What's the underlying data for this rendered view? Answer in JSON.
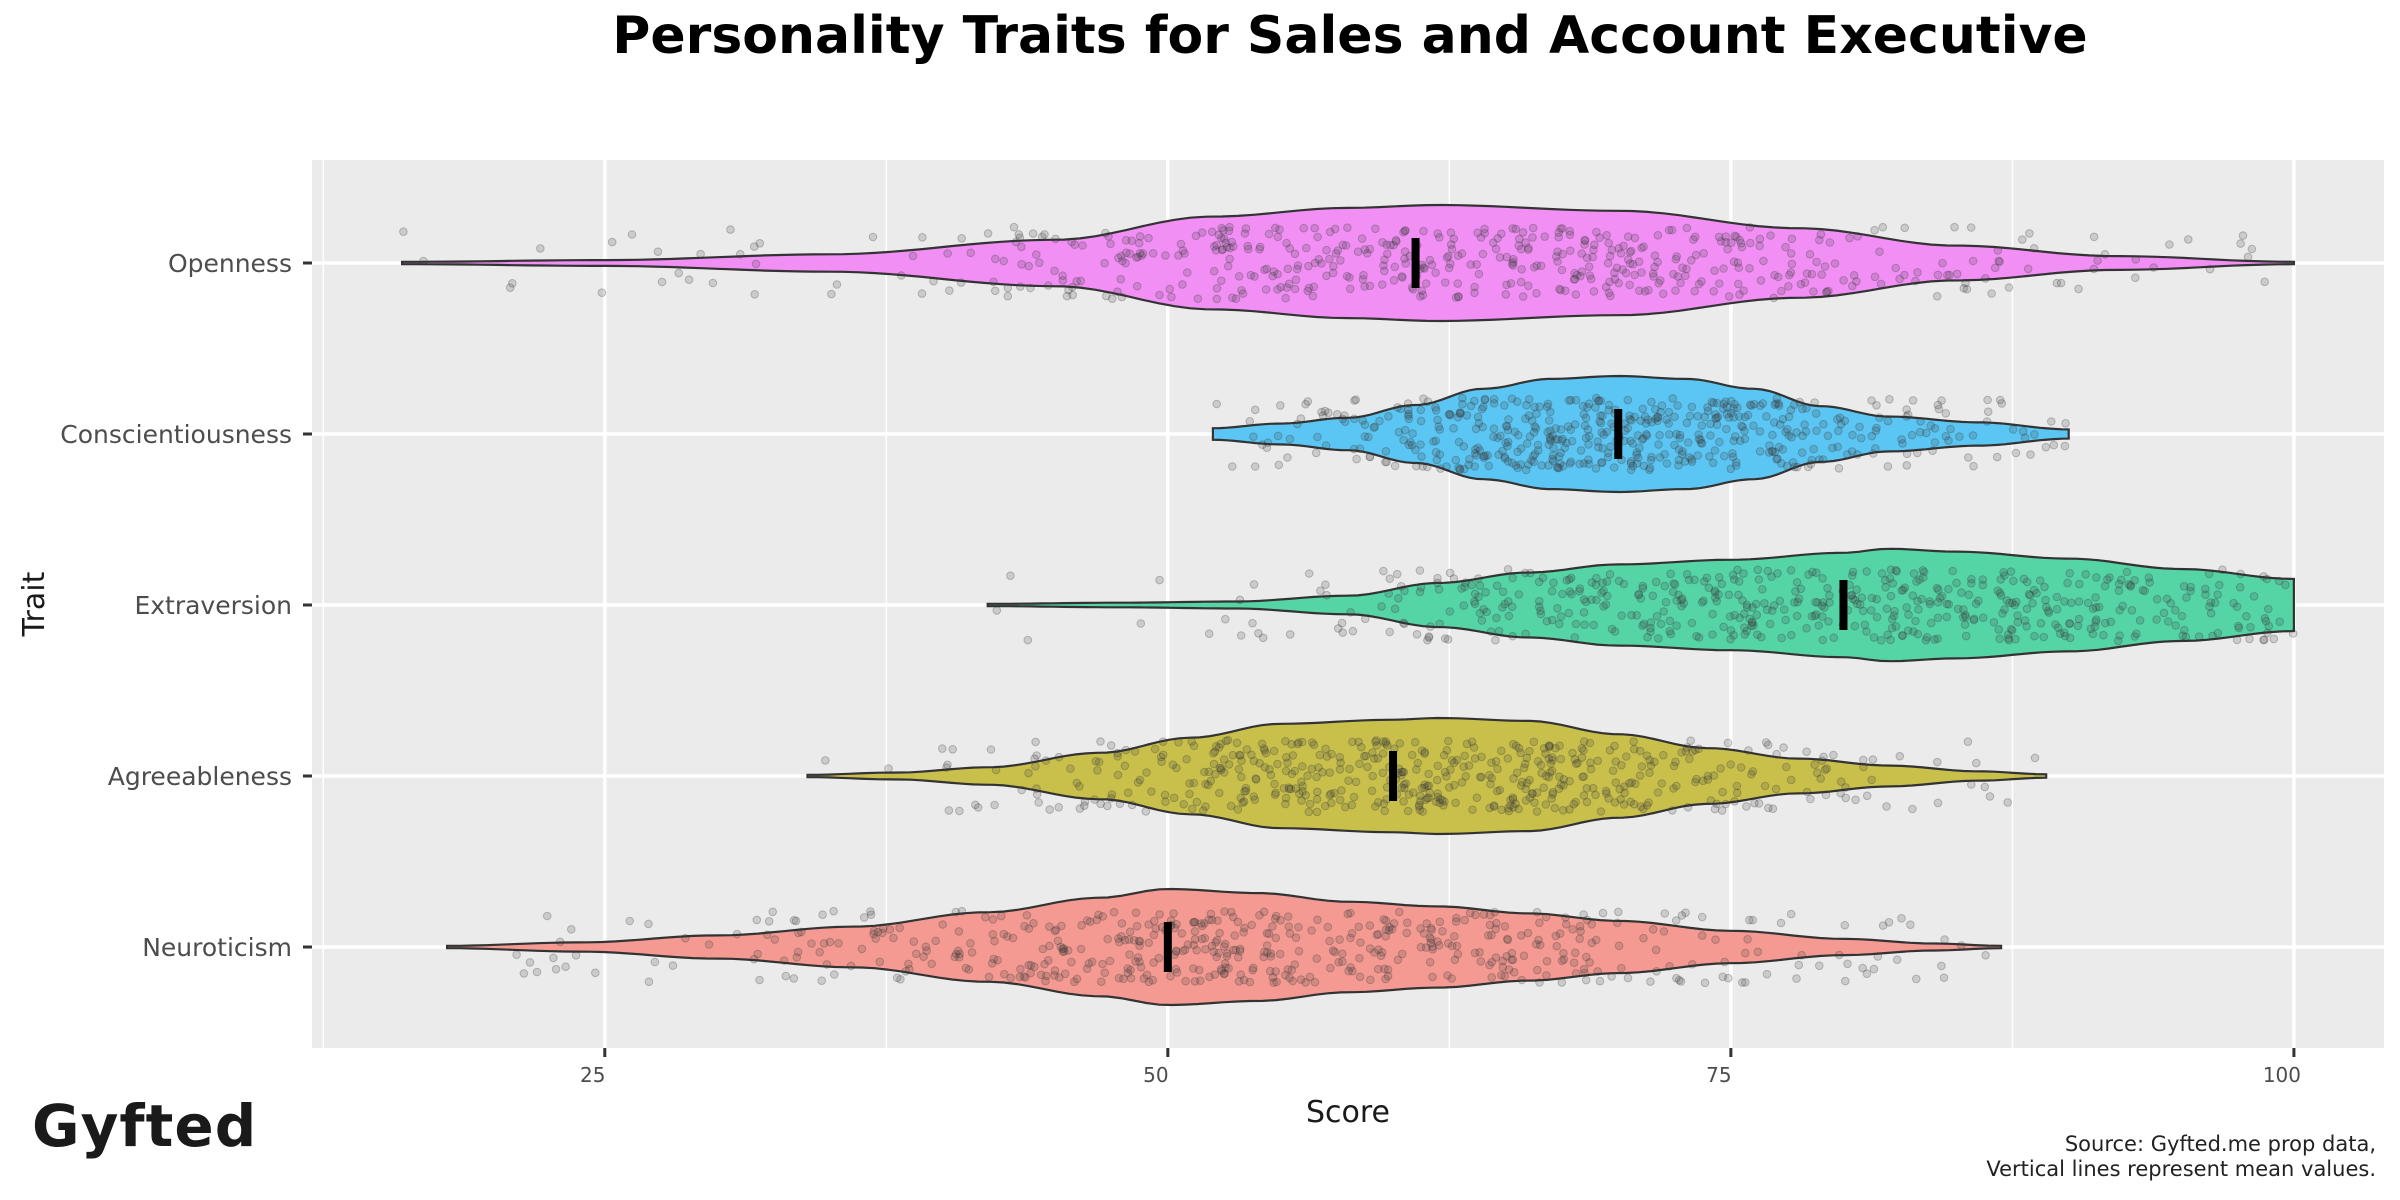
{
  "header": {
    "title": "Personality Traits for Sales and Account Executive"
  },
  "brand": {
    "logo_text": "Gyfted"
  },
  "caption": {
    "line1": "Source: Gyfted.me prop data,",
    "line2": "Vertical lines represent mean values."
  },
  "chart_data": {
    "type": "violin",
    "title": "Personality Traits for Sales and Account Executive",
    "xlabel": "Score",
    "ylabel": "Trait",
    "xlim": [
      12,
      104
    ],
    "xticks": [
      25,
      50,
      75,
      100
    ],
    "grid": true,
    "panel_bg": "#ebebeb",
    "traits": [
      {
        "name": "Openness",
        "color": "#f18ff5",
        "mean": 61,
        "min": 16,
        "max": 100,
        "density": [
          [
            16,
            0.02
          ],
          [
            25,
            0.05
          ],
          [
            35,
            0.15
          ],
          [
            45,
            0.4
          ],
          [
            52,
            0.8
          ],
          [
            58,
            0.95
          ],
          [
            62,
            1.0
          ],
          [
            70,
            0.9
          ],
          [
            78,
            0.6
          ],
          [
            85,
            0.3
          ],
          [
            92,
            0.12
          ],
          [
            100,
            0.02
          ]
        ]
      },
      {
        "name": "Conscientiousness",
        "color": "#5bc6f3",
        "mean": 70,
        "min": 52,
        "max": 90,
        "density": [
          [
            52,
            0.1
          ],
          [
            55,
            0.18
          ],
          [
            58,
            0.28
          ],
          [
            61,
            0.5
          ],
          [
            64,
            0.78
          ],
          [
            67,
            0.95
          ],
          [
            70,
            1.0
          ],
          [
            73,
            0.95
          ],
          [
            76,
            0.78
          ],
          [
            79,
            0.48
          ],
          [
            82,
            0.3
          ],
          [
            86,
            0.2
          ],
          [
            90,
            0.08
          ]
        ]
      },
      {
        "name": "Extraversion",
        "color": "#55d4a5",
        "mean": 80,
        "min": 42,
        "max": 100,
        "density": [
          [
            42,
            0.02
          ],
          [
            48,
            0.04
          ],
          [
            53,
            0.06
          ],
          [
            58,
            0.16
          ],
          [
            62,
            0.38
          ],
          [
            66,
            0.56
          ],
          [
            70,
            0.7
          ],
          [
            75,
            0.78
          ],
          [
            80,
            0.9
          ],
          [
            82,
            0.97
          ],
          [
            85,
            0.92
          ],
          [
            90,
            0.8
          ],
          [
            95,
            0.62
          ],
          [
            100,
            0.45
          ]
        ]
      },
      {
        "name": "Agreeableness",
        "color": "#c9c04c",
        "mean": 60,
        "min": 34,
        "max": 89,
        "density": [
          [
            34,
            0.02
          ],
          [
            38,
            0.06
          ],
          [
            42,
            0.15
          ],
          [
            47,
            0.4
          ],
          [
            51,
            0.66
          ],
          [
            55,
            0.9
          ],
          [
            60,
            0.97
          ],
          [
            62,
            1.0
          ],
          [
            66,
            0.95
          ],
          [
            70,
            0.72
          ],
          [
            74,
            0.48
          ],
          [
            78,
            0.3
          ],
          [
            82,
            0.18
          ],
          [
            86,
            0.08
          ],
          [
            89,
            0.03
          ]
        ]
      },
      {
        "name": "Neuroticism",
        "color": "#f49a92",
        "mean": 50,
        "min": 18,
        "max": 87,
        "density": [
          [
            18,
            0.02
          ],
          [
            24,
            0.08
          ],
          [
            30,
            0.2
          ],
          [
            36,
            0.35
          ],
          [
            42,
            0.6
          ],
          [
            47,
            0.85
          ],
          [
            50,
            1.0
          ],
          [
            54,
            0.93
          ],
          [
            58,
            0.78
          ],
          [
            62,
            0.7
          ],
          [
            66,
            0.58
          ],
          [
            70,
            0.45
          ],
          [
            75,
            0.28
          ],
          [
            80,
            0.14
          ],
          [
            84,
            0.06
          ],
          [
            87,
            0.02
          ]
        ]
      }
    ]
  }
}
